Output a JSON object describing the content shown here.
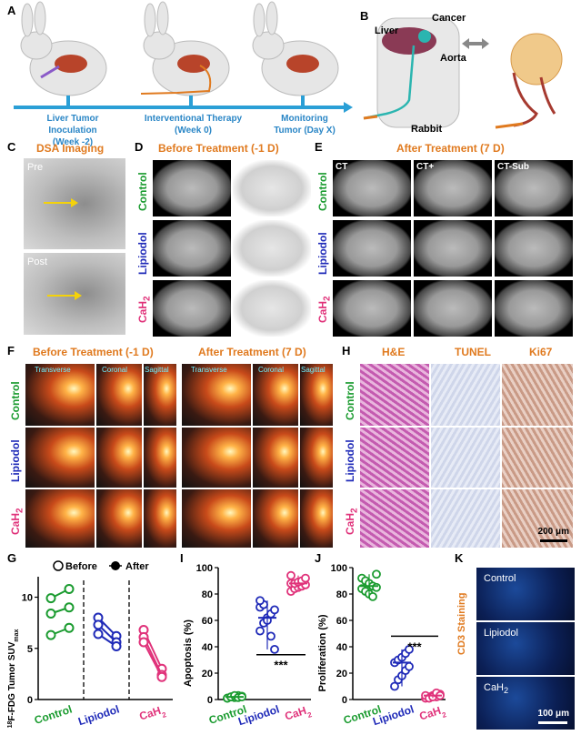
{
  "panels": {
    "A": "A",
    "B": "B",
    "C": "C",
    "D": "D",
    "E": "E",
    "F": "F",
    "G": "G",
    "H": "H",
    "I": "I",
    "J": "J",
    "K": "K"
  },
  "timeline": {
    "step1_line1": "Liver Tumor",
    "step1_line2": "Inoculation (Week -2)",
    "step2_line1": "Interventional Therapy",
    "step2_line2": "(Week 0)",
    "step3_line1": "Monitoring",
    "step3_line2": "Tumor (Day X)"
  },
  "anatomy": {
    "cancer": "Cancer",
    "liver": "Liver",
    "aorta": "Aorta",
    "rabbit": "Rabbit"
  },
  "dsa": {
    "title": "DSA Imaging",
    "pre": "Pre",
    "post": "Post"
  },
  "before": {
    "title": "Before Treatment (-1 D)"
  },
  "after": {
    "title": "After Treatment (7 D)",
    "ct": "CT",
    "ct_plus": "CT+",
    "ct_sub": "CT-Sub"
  },
  "groups": {
    "control": "Control",
    "lipiodol": "Lipiodol",
    "cah2": "CaH",
    "cah2_sub": "2"
  },
  "petct": {
    "before_title": "Before Treatment (-1 D)",
    "after_title": "After Treatment (7 D)",
    "transverse": "Transverse",
    "coronal": "Coronal",
    "sagittal": "Sagittal"
  },
  "histo": {
    "he": "H&E",
    "tunel": "TUNEL",
    "ki67": "Ki67",
    "scale": "200 μm"
  },
  "cd3": {
    "label": "CD3 Staining",
    "control": "Control",
    "lipiodol": "Lipiodol",
    "cah2": "CaH",
    "cah2_sub": "2",
    "scale": "100 μm"
  },
  "chart_data": [
    {
      "type": "scatter",
      "title": "",
      "ylabel_pre": "18",
      "ylabel_main": "F-FDG Tumor SUV",
      "ylabel_sub": "max",
      "legend": [
        "Before",
        "After"
      ],
      "ylim": [
        0,
        12
      ],
      "yticks": [
        0,
        5,
        10
      ],
      "categories": [
        "Control",
        "Lipiodol",
        "CaH2"
      ],
      "series": [
        {
          "name": "Before",
          "values": [
            [
              6.3,
              8.4,
              9.9
            ],
            [
              8.0,
              7.3,
              6.4
            ],
            [
              6.8,
              6.1,
              5.6
            ]
          ]
        },
        {
          "name": "After",
          "values": [
            [
              7.0,
              9.0,
              10.8
            ],
            [
              6.2,
              5.6,
              5.2
            ],
            [
              3.0,
              2.4,
              2.2
            ]
          ]
        }
      ]
    },
    {
      "type": "scatter",
      "ylabel": "Apoptosis (%)",
      "ylim": [
        0,
        100
      ],
      "yticks": [
        0,
        20,
        40,
        60,
        80,
        100
      ],
      "categories": [
        "Control",
        "Lipiodol",
        "CaH2"
      ],
      "values": [
        [
          1,
          2,
          1.5,
          3,
          2.5,
          1,
          2,
          3,
          1.5,
          2
        ],
        [
          52,
          58,
          62,
          65,
          68,
          70,
          72,
          60,
          48,
          38,
          75
        ],
        [
          82,
          84,
          85,
          86,
          87,
          88,
          88,
          89,
          90,
          92,
          94
        ]
      ],
      "significance": "***"
    },
    {
      "type": "scatter",
      "ylabel": "Proliferation (%)",
      "ylim": [
        0,
        100
      ],
      "yticks": [
        0,
        20,
        40,
        60,
        80,
        100
      ],
      "categories": [
        "Control",
        "Lipiodol",
        "CaH2"
      ],
      "values": [
        [
          92,
          90,
          88,
          86,
          85,
          84,
          82,
          80,
          78,
          95
        ],
        [
          10,
          15,
          18,
          22,
          25,
          28,
          30,
          32,
          35,
          38
        ],
        [
          1,
          2,
          3,
          2,
          4,
          3,
          1,
          2,
          5,
          3
        ]
      ],
      "significance": "***"
    }
  ]
}
